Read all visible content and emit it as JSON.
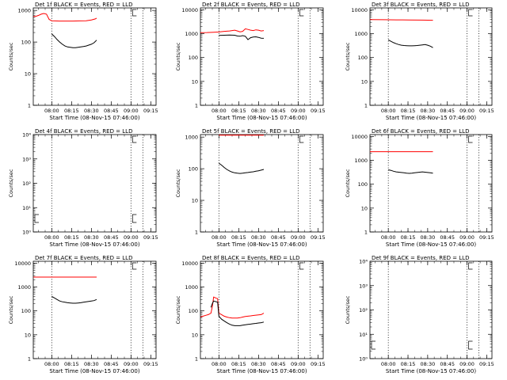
{
  "chart_data": [
    {
      "type": "line",
      "title": "Det 1f BLACK = Events, RED = LLD",
      "xlabel": "Start Time (08-Nov-15 07:46:00)",
      "ylabel": "Counts/sec",
      "x_ticks": [
        "08:00",
        "08:15",
        "08:30",
        "08:45",
        "09:00",
        "09:15"
      ],
      "y_scale": "log",
      "y_ticks": [
        "1",
        "10",
        "100",
        "1000"
      ],
      "xlim_minutes": [
        0,
        93
      ],
      "ylim": [
        1,
        1200
      ],
      "vlines_minutes": [
        14,
        74,
        83
      ],
      "series": [
        {
          "color": "#ff0000",
          "x": [
            0,
            2,
            4,
            6,
            8,
            10,
            12,
            14,
            16,
            20,
            25,
            30,
            35,
            40,
            44,
            47,
            48
          ],
          "y": [
            640,
            650,
            700,
            760,
            800,
            760,
            520,
            470,
            465,
            460,
            460,
            462,
            465,
            470,
            500,
            540,
            570
          ]
        },
        {
          "color": "#000000",
          "x": [
            14,
            16,
            18,
            20,
            22,
            24,
            26,
            28,
            30,
            32,
            34,
            36,
            38,
            40,
            42,
            44,
            46,
            48
          ],
          "y": [
            180,
            150,
            120,
            100,
            85,
            75,
            70,
            68,
            66,
            66,
            68,
            70,
            72,
            75,
            80,
            85,
            95,
            115
          ]
        }
      ]
    },
    {
      "type": "line",
      "title": "Det 2f BLACK = Events, RED = LLD",
      "xlabel": "Start Time (08-Nov-15 07:46:00)",
      "ylabel": "Counts/sec",
      "x_ticks": [
        "08:00",
        "08:15",
        "08:30",
        "08:45",
        "09:00",
        "09:15"
      ],
      "y_scale": "log",
      "y_ticks": [
        "1",
        "10",
        "100",
        "1000",
        "10000"
      ],
      "xlim_minutes": [
        0,
        93
      ],
      "ylim": [
        1,
        12000
      ],
      "vlines_minutes": [
        14,
        74,
        83
      ],
      "series": [
        {
          "color": "#ff0000",
          "x": [
            0,
            5,
            10,
            14,
            18,
            22,
            26,
            28,
            30,
            32,
            34,
            36,
            38,
            40,
            42,
            44,
            46,
            48
          ],
          "y": [
            1100,
            1120,
            1150,
            1180,
            1250,
            1300,
            1400,
            1300,
            1200,
            1250,
            1600,
            1500,
            1400,
            1350,
            1450,
            1400,
            1300,
            1350
          ]
        },
        {
          "color": "#000000",
          "x": [
            14,
            18,
            22,
            26,
            28,
            30,
            32,
            34,
            36,
            38,
            40,
            42,
            44,
            46,
            48
          ],
          "y": [
            850,
            860,
            880,
            860,
            800,
            780,
            830,
            780,
            560,
            680,
            720,
            740,
            700,
            650,
            640
          ]
        }
      ]
    },
    {
      "type": "line",
      "title": "Det 3f BLACK = Events, RED = LLD",
      "xlabel": "Start Time (08-Nov-15 07:46:00)",
      "ylabel": "Counts/sec",
      "x_ticks": [
        "08:00",
        "08:15",
        "08:30",
        "08:45",
        "09:00",
        "09:15"
      ],
      "y_scale": "log",
      "y_ticks": [
        "1",
        "10",
        "100",
        "1000",
        "10000"
      ],
      "xlim_minutes": [
        0,
        93
      ],
      "ylim": [
        1,
        12000
      ],
      "vlines_minutes": [
        14,
        74,
        83
      ],
      "series": [
        {
          "color": "#ff0000",
          "x": [
            0,
            10,
            20,
            30,
            40,
            48
          ],
          "y": [
            3900,
            3850,
            3800,
            3750,
            3700,
            3650
          ]
        },
        {
          "color": "#000000",
          "x": [
            14,
            16,
            18,
            20,
            22,
            24,
            26,
            28,
            30,
            32,
            34,
            36,
            38,
            40,
            42,
            44,
            46,
            48
          ],
          "y": [
            550,
            480,
            420,
            380,
            350,
            330,
            320,
            315,
            310,
            310,
            315,
            320,
            330,
            340,
            350,
            330,
            300,
            260
          ]
        }
      ]
    },
    {
      "type": "line",
      "title": "Det 4f BLACK = Events, RED = LLD",
      "xlabel": "Start Time (08-Nov-15 07:46:00)",
      "ylabel": "Counts/sec",
      "x_ticks": [
        "08:00",
        "08:15",
        "08:30",
        "08:45",
        "09:00",
        "09:15"
      ],
      "y_scale": "log",
      "y_ticks": [
        "10⁰",
        "10¹",
        "10²",
        "10³",
        "10⁴"
      ],
      "xlim_minutes": [
        0,
        93
      ],
      "ylim": [
        1,
        10000
      ],
      "vlines_minutes": [
        14,
        74,
        83
      ],
      "series": []
    },
    {
      "type": "line",
      "title": "Det 5f BLACK = Events, RED = LLD",
      "xlabel": "Start Time (08-Nov-15 07:46:00)",
      "ylabel": "Counts/sec",
      "x_ticks": [
        "08:00",
        "08:15",
        "08:30",
        "08:45",
        "09:00",
        "09:15"
      ],
      "y_scale": "log",
      "y_ticks": [
        "1",
        "10",
        "100",
        "1000"
      ],
      "xlim_minutes": [
        0,
        93
      ],
      "ylim": [
        1,
        1200
      ],
      "vlines_minutes": [
        14,
        74,
        83
      ],
      "series": [
        {
          "color": "#ff0000",
          "x": [
            14,
            20,
            30,
            40,
            48
          ],
          "y": [
            1150,
            1150,
            1150,
            1150,
            1150
          ]
        },
        {
          "color": "#000000",
          "x": [
            14,
            16,
            18,
            20,
            22,
            24,
            26,
            28,
            30,
            32,
            34,
            36,
            38,
            40,
            42,
            44,
            46,
            48
          ],
          "y": [
            150,
            130,
            110,
            95,
            85,
            78,
            74,
            72,
            71,
            72,
            74,
            76,
            78,
            80,
            83,
            86,
            90,
            95
          ]
        }
      ]
    },
    {
      "type": "line",
      "title": "Det 6f BLACK = Events, RED = LLD",
      "xlabel": "Start Time (08-Nov-15 07:46:00)",
      "ylabel": "Counts/sec",
      "x_ticks": [
        "08:00",
        "08:15",
        "08:30",
        "08:45",
        "09:00",
        "09:15"
      ],
      "y_scale": "log",
      "y_ticks": [
        "1",
        "10",
        "100",
        "1000",
        "10000"
      ],
      "xlim_minutes": [
        0,
        93
      ],
      "ylim": [
        1,
        12000
      ],
      "vlines_minutes": [
        14,
        74,
        83
      ],
      "series": [
        {
          "color": "#ff0000",
          "x": [
            0,
            10,
            20,
            30,
            40,
            48
          ],
          "y": [
            2300,
            2300,
            2300,
            2300,
            2300,
            2300
          ]
        },
        {
          "color": "#000000",
          "x": [
            14,
            16,
            18,
            20,
            22,
            24,
            26,
            28,
            30,
            32,
            34,
            36,
            38,
            40,
            42,
            44,
            46,
            48
          ],
          "y": [
            400,
            380,
            350,
            330,
            320,
            310,
            300,
            290,
            285,
            290,
            300,
            310,
            320,
            330,
            320,
            310,
            300,
            290
          ]
        }
      ]
    },
    {
      "type": "line",
      "title": "Det 7f BLACK = Events, RED = LLD",
      "xlabel": "Start Time (08-Nov-15 07:46:00)",
      "ylabel": "Counts/sec",
      "x_ticks": [
        "08:00",
        "08:15",
        "08:30",
        "08:45",
        "09:00",
        "09:15"
      ],
      "y_scale": "log",
      "y_ticks": [
        "1",
        "10",
        "100",
        "1000",
        "10000"
      ],
      "xlim_minutes": [
        0,
        93
      ],
      "ylim": [
        1,
        12000
      ],
      "vlines_minutes": [
        14,
        74,
        83
      ],
      "series": [
        {
          "color": "#ff0000",
          "x": [
            0,
            10,
            20,
            30,
            40,
            48
          ],
          "y": [
            2600,
            2600,
            2600,
            2600,
            2600,
            2600
          ]
        },
        {
          "color": "#000000",
          "x": [
            14,
            16,
            18,
            20,
            22,
            24,
            26,
            28,
            30,
            32,
            34,
            36,
            38,
            40,
            42,
            44,
            46,
            48
          ],
          "y": [
            400,
            350,
            300,
            260,
            240,
            230,
            220,
            215,
            210,
            210,
            215,
            220,
            230,
            240,
            250,
            260,
            270,
            300
          ]
        }
      ]
    },
    {
      "type": "line",
      "title": "Det 8f BLACK = Events, RED = LLD",
      "xlabel": "Start Time (08-Nov-15 07:46:00)",
      "ylabel": "Counts/sec",
      "x_ticks": [
        "08:00",
        "08:15",
        "08:30",
        "08:45",
        "09:00",
        "09:15"
      ],
      "y_scale": "log",
      "y_ticks": [
        "1",
        "10",
        "100",
        "1000",
        "10000"
      ],
      "xlim_minutes": [
        0,
        93
      ],
      "ylim": [
        1,
        12000
      ],
      "vlines_minutes": [
        14,
        74,
        83
      ],
      "series": [
        {
          "color": "#ff0000",
          "x": [
            0,
            2,
            4,
            6,
            8,
            9,
            10,
            11,
            12,
            13,
            14,
            16,
            18,
            20,
            22,
            24,
            26,
            28,
            30,
            32,
            34,
            36,
            38,
            40,
            42,
            44,
            46,
            48
          ],
          "y": [
            55,
            60,
            65,
            70,
            80,
            150,
            380,
            360,
            340,
            330,
            80,
            70,
            60,
            55,
            52,
            50,
            50,
            50,
            52,
            55,
            58,
            60,
            62,
            64,
            66,
            68,
            70,
            80
          ]
        },
        {
          "color": "#000000",
          "x": [
            8,
            9,
            10,
            11,
            12,
            13,
            14,
            16,
            18,
            20,
            22,
            24,
            26,
            28,
            30,
            32,
            34,
            36,
            38,
            40,
            42,
            44,
            46,
            48
          ],
          "y": [
            140,
            200,
            260,
            250,
            240,
            235,
            60,
            45,
            38,
            32,
            28,
            25,
            24,
            24,
            24,
            25,
            26,
            27,
            28,
            29,
            30,
            31,
            32,
            34
          ]
        }
      ]
    },
    {
      "type": "line",
      "title": "Det 9f BLACK = Events, RED = LLD",
      "xlabel": "Start Time (08-Nov-15 07:46:00)",
      "ylabel": "Counts/sec",
      "x_ticks": [
        "08:00",
        "08:15",
        "08:30",
        "08:45",
        "09:00",
        "09:15"
      ],
      "y_scale": "log",
      "y_ticks": [
        "10⁰",
        "10¹",
        "10²",
        "10³",
        "10⁴"
      ],
      "xlim_minutes": [
        0,
        93
      ],
      "ylim": [
        1,
        10000
      ],
      "vlines_minutes": [
        14,
        74,
        83
      ],
      "series": []
    }
  ]
}
